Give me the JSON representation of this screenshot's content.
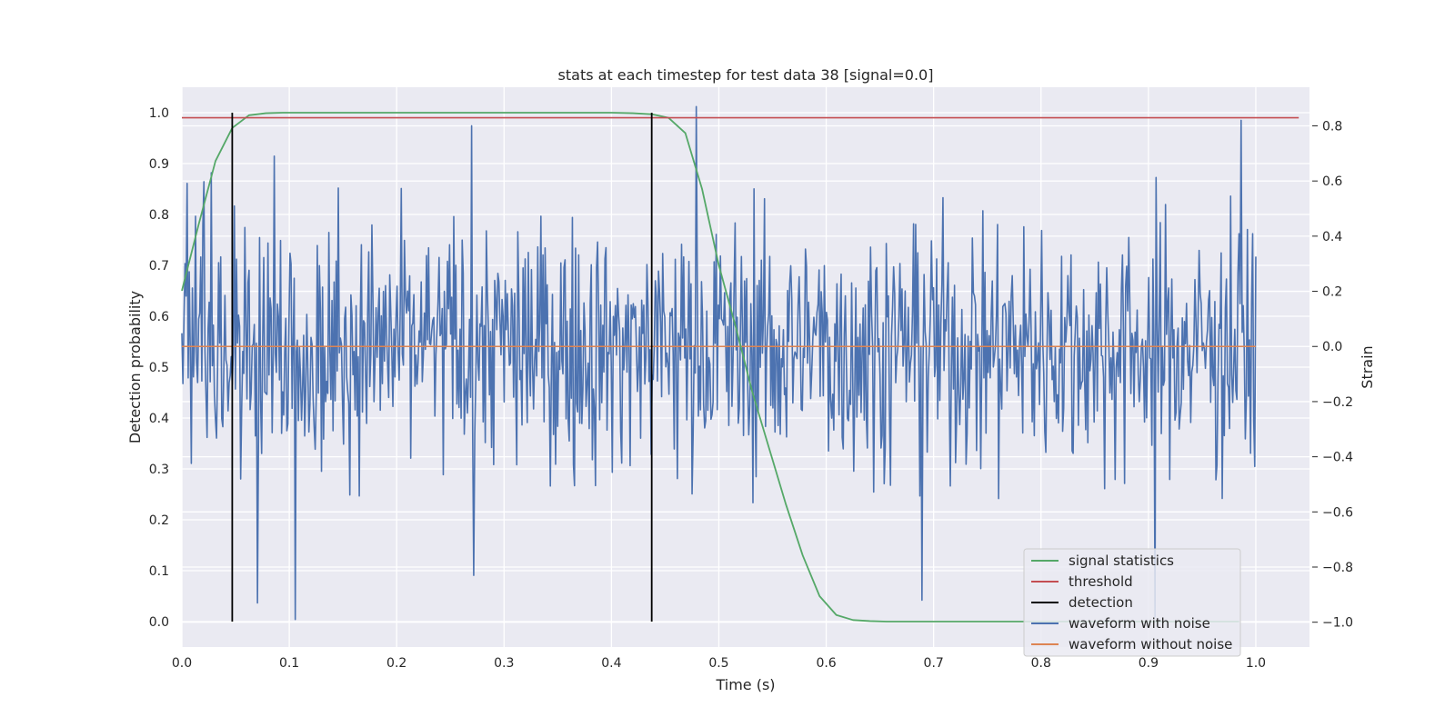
{
  "chart_data": {
    "type": "line",
    "title": "stats at each timestep for test data 38 [signal=0.0]",
    "xlabel": "Time (s)",
    "ylabel_left": "Detection probability",
    "ylabel_right": "Strain",
    "xlim": [
      0.0,
      1.05
    ],
    "ylim_left": [
      -0.05,
      1.05
    ],
    "ylim_right": [
      -1.09,
      0.94
    ],
    "x_ticks": [
      "0.0",
      "0.1",
      "0.2",
      "0.3",
      "0.4",
      "0.5",
      "0.6",
      "0.7",
      "0.8",
      "0.9",
      "1.0"
    ],
    "y_left_ticks": [
      "0.0",
      "0.1",
      "0.2",
      "0.3",
      "0.4",
      "0.5",
      "0.6",
      "0.7",
      "0.8",
      "0.9",
      "1.0"
    ],
    "y_right_ticks": [
      "−1.0",
      "−0.8",
      "−0.6",
      "−0.4",
      "−0.2",
      "0.0",
      "0.2",
      "0.4",
      "0.6",
      "0.8"
    ],
    "grid": true,
    "legend_position": "lower-right",
    "colors": {
      "plot_background": "#eaeaf2",
      "grid": "#ffffff",
      "signal_statistics": "#55a868",
      "threshold": "#c44e52",
      "detection": "#000000",
      "waveform_with_noise": "#4c72b0",
      "waveform_without_noise": "#dd8452"
    },
    "series": [
      {
        "name": "signal statistics",
        "axis": "left",
        "x": [
          0.0,
          0.0156,
          0.0313,
          0.0469,
          0.0625,
          0.0781,
          0.0938,
          0.1094,
          0.125,
          0.2,
          0.3,
          0.4,
          0.42,
          0.4375,
          0.4531,
          0.4688,
          0.4844,
          0.5,
          0.5156,
          0.5313,
          0.5469,
          0.5625,
          0.5781,
          0.5938,
          0.6094,
          0.625,
          0.6406,
          0.6563,
          0.7,
          0.8,
          0.9,
          0.9844
        ],
        "y": [
          0.65,
          0.78,
          0.905,
          0.97,
          0.995,
          0.999,
          1.0,
          1.0,
          1.0,
          1.0,
          1.0,
          1.0,
          0.999,
          0.997,
          0.99,
          0.96,
          0.85,
          0.7,
          0.58,
          0.45,
          0.34,
          0.23,
          0.13,
          0.05,
          0.013,
          0.003,
          0.001,
          0.0,
          0.0,
          0.0,
          0.0,
          0.0
        ]
      },
      {
        "name": "threshold",
        "axis": "left",
        "x": [
          0.0,
          1.04
        ],
        "y": [
          0.99,
          0.99
        ]
      },
      {
        "name": "detection",
        "axis": "left",
        "x": [
          0.0469,
          0.4375
        ],
        "ymin": 0.0,
        "ymax": 1.0
      },
      {
        "name": "waveform with noise",
        "axis": "right",
        "x_start": 0.0,
        "x_end": 1.0,
        "y_min": -1.0,
        "y_max": 0.87,
        "points": 1024,
        "seed": 38,
        "peaks": [
          {
            "x": 0.0273,
            "y": 0.63
          },
          {
            "x": 0.0859,
            "y": 0.69
          },
          {
            "x": 0.2695,
            "y": 0.8
          },
          {
            "x": 0.4785,
            "y": 0.87
          },
          {
            "x": 0.9863,
            "y": 0.82
          },
          {
            "x": 0.1055,
            "y": -0.99
          },
          {
            "x": 0.0703,
            "y": -0.93
          },
          {
            "x": 0.2715,
            "y": -0.83
          },
          {
            "x": 0.9063,
            "y": -0.98
          },
          {
            "x": 0.6895,
            "y": -0.92
          }
        ]
      },
      {
        "name": "waveform without noise",
        "axis": "right",
        "x": [
          0.0,
          1.0
        ],
        "y": [
          0.0,
          0.0
        ]
      }
    ]
  }
}
